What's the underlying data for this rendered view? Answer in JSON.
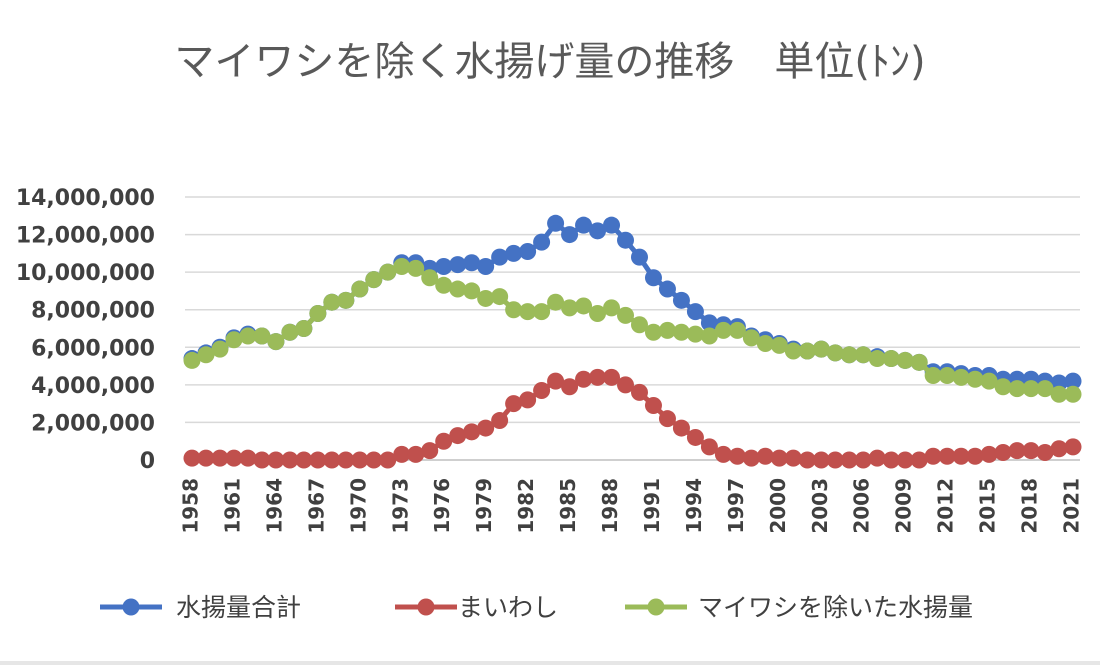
{
  "chart_data": {
    "type": "line",
    "title": "マイワシを除く水揚げ量の推移　単位(ﾄﾝ)",
    "xlabel": "",
    "ylabel": "",
    "ylim": [
      0,
      14000000
    ],
    "yticks": [
      0,
      2000000,
      4000000,
      6000000,
      8000000,
      10000000,
      12000000,
      14000000
    ],
    "ytick_labels": [
      "0",
      "2,000,000",
      "4,000,000",
      "6,000,000",
      "8,000,000",
      "10,000,000",
      "12,000,000",
      "14,000,000"
    ],
    "x": [
      1958,
      1959,
      1960,
      1961,
      1962,
      1963,
      1964,
      1965,
      1966,
      1967,
      1968,
      1969,
      1970,
      1971,
      1972,
      1973,
      1974,
      1975,
      1976,
      1977,
      1978,
      1979,
      1980,
      1981,
      1982,
      1983,
      1984,
      1985,
      1986,
      1987,
      1988,
      1989,
      1990,
      1991,
      1992,
      1993,
      1994,
      1995,
      1996,
      1997,
      1998,
      1999,
      2000,
      2001,
      2002,
      2003,
      2004,
      2005,
      2006,
      2007,
      2008,
      2009,
      2010,
      2011,
      2012,
      2013,
      2014,
      2015,
      2016,
      2017,
      2018,
      2019,
      2020,
      2021
    ],
    "xtick_labels": [
      "1958",
      "1961",
      "1964",
      "1967",
      "1970",
      "1973",
      "1976",
      "1979",
      "1982",
      "1985",
      "1988",
      "1991",
      "1994",
      "1997",
      "2000",
      "2003",
      "2006",
      "2009",
      "2012",
      "2015",
      "2018",
      "2021"
    ],
    "grid": true,
    "legend": "bottom",
    "series": [
      {
        "name": "水揚量合計",
        "color": "#4472c4",
        "values": [
          5400000,
          5700000,
          6000000,
          6500000,
          6700000,
          6600000,
          6300000,
          6800000,
          7000000,
          7800000,
          8400000,
          8500000,
          9100000,
          9600000,
          10000000,
          10500000,
          10500000,
          10200000,
          10300000,
          10400000,
          10500000,
          10300000,
          10800000,
          11000000,
          11100000,
          11600000,
          12600000,
          12000000,
          12500000,
          12200000,
          12500000,
          11700000,
          10800000,
          9700000,
          9100000,
          8500000,
          7900000,
          7300000,
          7200000,
          7100000,
          6600000,
          6400000,
          6200000,
          5900000,
          5800000,
          5900000,
          5700000,
          5600000,
          5600000,
          5500000,
          5400000,
          5300000,
          5200000,
          4700000,
          4700000,
          4600000,
          4500000,
          4500000,
          4300000,
          4300000,
          4300000,
          4200000,
          4100000,
          4200000
        ]
      },
      {
        "name": "まいわし",
        "color": "#c0504d",
        "values": [
          100000,
          100000,
          100000,
          100000,
          100000,
          0,
          0,
          0,
          0,
          0,
          0,
          0,
          0,
          0,
          0,
          300000,
          300000,
          500000,
          1000000,
          1300000,
          1500000,
          1700000,
          2100000,
          3000000,
          3200000,
          3700000,
          4200000,
          3900000,
          4300000,
          4400000,
          4400000,
          4000000,
          3600000,
          2900000,
          2200000,
          1700000,
          1200000,
          700000,
          300000,
          200000,
          100000,
          200000,
          100000,
          100000,
          0,
          0,
          0,
          0,
          0,
          100000,
          0,
          0,
          0,
          200000,
          200000,
          200000,
          200000,
          300000,
          400000,
          500000,
          500000,
          400000,
          600000,
          700000
        ]
      },
      {
        "name": "マイワシを除いた水揚量",
        "color": "#9bbb59",
        "values": [
          5300000,
          5600000,
          5900000,
          6400000,
          6600000,
          6600000,
          6300000,
          6800000,
          7000000,
          7800000,
          8400000,
          8500000,
          9100000,
          9600000,
          10000000,
          10300000,
          10200000,
          9700000,
          9300000,
          9100000,
          9000000,
          8600000,
          8700000,
          8000000,
          7900000,
          7900000,
          8400000,
          8100000,
          8200000,
          7800000,
          8100000,
          7700000,
          7200000,
          6800000,
          6900000,
          6800000,
          6700000,
          6600000,
          6900000,
          6900000,
          6500000,
          6200000,
          6100000,
          5800000,
          5800000,
          5900000,
          5700000,
          5600000,
          5600000,
          5400000,
          5400000,
          5300000,
          5200000,
          4500000,
          4500000,
          4400000,
          4300000,
          4200000,
          3900000,
          3800000,
          3800000,
          3800000,
          3500000,
          3500000
        ]
      }
    ]
  }
}
